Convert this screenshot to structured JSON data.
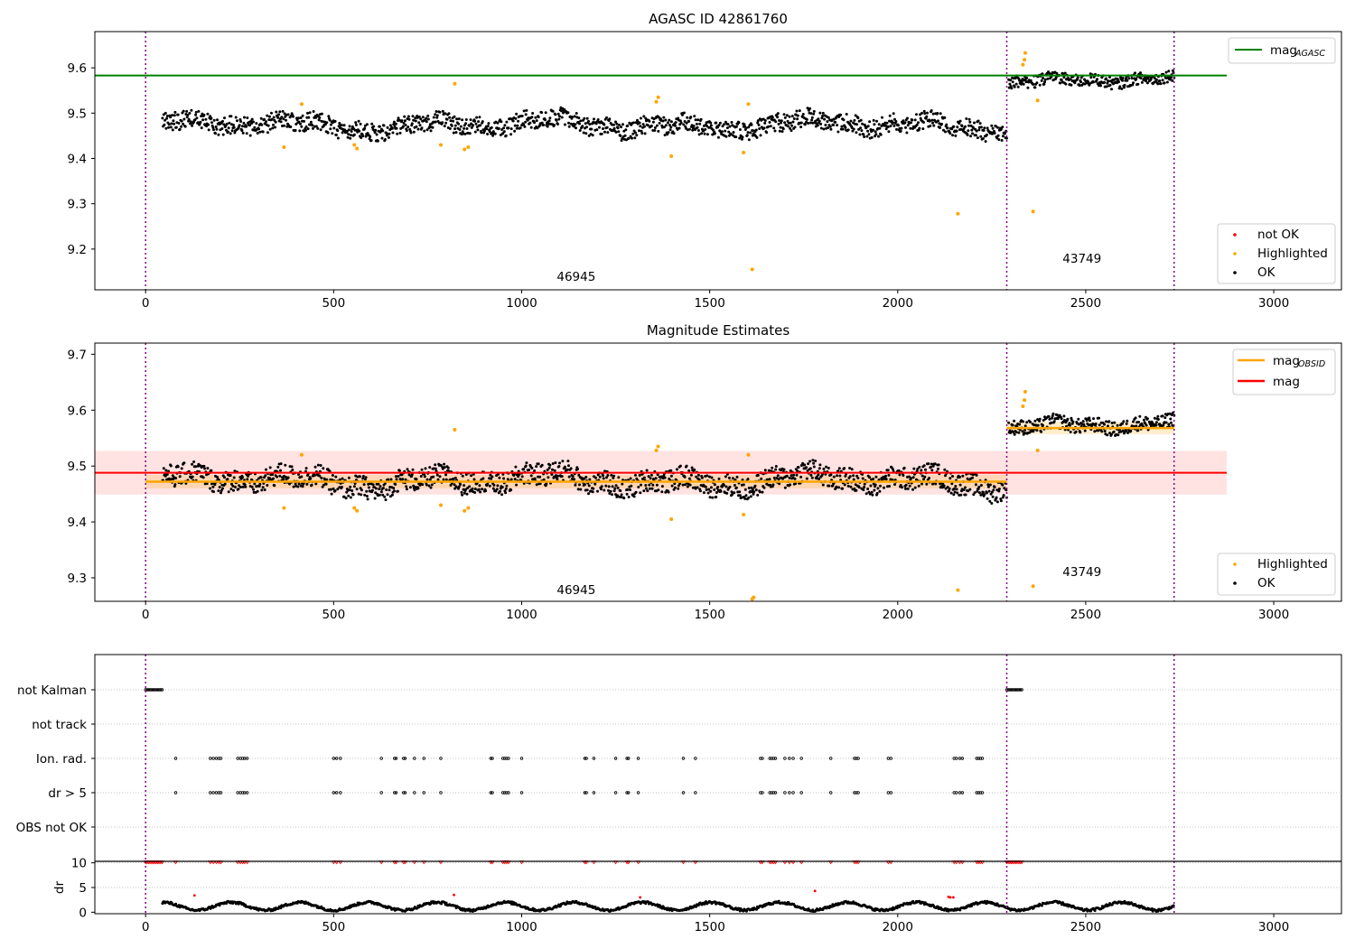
{
  "chart_data": [
    {
      "type": "scatter",
      "title": "AGASC ID 42861760",
      "xlim": [
        -135,
        3180
      ],
      "ylim": [
        9.11,
        9.68
      ],
      "xticks": [
        0,
        500,
        1000,
        1500,
        2000,
        2500,
        3000
      ],
      "yticks": [
        9.2,
        9.3,
        9.4,
        9.5,
        9.6
      ],
      "ytick_labels": [
        "9.2",
        "9.3",
        "9.4",
        "9.5",
        "9.6"
      ],
      "obsid_boundaries": [
        0,
        2290,
        2735
      ],
      "obsid_labels": [
        {
          "text": "46945",
          "x": 1145,
          "y": 9.13
        },
        {
          "text": "43749",
          "x": 2490,
          "y": 9.17
        }
      ],
      "reference_lines": [
        {
          "name": "mag",
          "subscript": "AGASC",
          "y": 9.583,
          "x": [
            -135,
            2875
          ],
          "color": "#008000"
        }
      ],
      "segments": [
        {
          "x": [
            45,
            2290
          ],
          "base": 9.474,
          "amp": 0.018
        },
        {
          "x": [
            2295,
            2735
          ],
          "base": 9.572,
          "amp": 0.012
        }
      ],
      "highlighted_points": [
        [
          368,
          9.425
        ],
        [
          415,
          9.52
        ],
        [
          555,
          9.43
        ],
        [
          562,
          9.422
        ],
        [
          785,
          9.43
        ],
        [
          822,
          9.565
        ],
        [
          848,
          9.42
        ],
        [
          858,
          9.425
        ],
        [
          1358,
          9.525
        ],
        [
          1363,
          9.535
        ],
        [
          1398,
          9.405
        ],
        [
          1590,
          9.413
        ],
        [
          1603,
          9.52
        ],
        [
          1613,
          9.155
        ],
        [
          2160,
          9.278
        ],
        [
          2333,
          9.607
        ],
        [
          2337,
          9.618
        ],
        [
          2339,
          9.633
        ],
        [
          2360,
          9.283
        ],
        [
          2372,
          9.528
        ]
      ],
      "legend": {
        "reference": [
          {
            "label": "mag",
            "subscript": "AGASC",
            "color": "#008000"
          }
        ],
        "points": [
          {
            "label": "not OK",
            "color": "#ff0000"
          },
          {
            "label": "Highlighted",
            "color": "#ffa500"
          },
          {
            "label": "OK",
            "color": "#000000"
          }
        ],
        "placement": [
          "upper right",
          "lower right"
        ]
      }
    },
    {
      "type": "scatter",
      "title": "Magnitude Estimates",
      "xlim": [
        -135,
        3180
      ],
      "ylim": [
        9.258,
        9.72
      ],
      "xticks": [
        0,
        500,
        1000,
        1500,
        2000,
        2500,
        3000
      ],
      "yticks": [
        9.3,
        9.4,
        9.5,
        9.6,
        9.7
      ],
      "ytick_labels": [
        "9.3",
        "9.4",
        "9.5",
        "9.6",
        "9.7"
      ],
      "obsid_boundaries": [
        0,
        2290,
        2735
      ],
      "obsid_labels": [
        {
          "text": "46945",
          "x": 1145,
          "y": 9.271
        },
        {
          "text": "43749",
          "x": 2490,
          "y": 9.303
        }
      ],
      "mag": {
        "y": 9.488,
        "band": [
          9.449,
          9.527
        ],
        "x": [
          -135,
          2875
        ],
        "color": "#ff0000"
      },
      "mag_obsid": [
        {
          "x": [
            0,
            2290
          ],
          "y": 9.472,
          "band": [
            9.46,
            9.484
          ]
        },
        {
          "x": [
            2290,
            2735
          ],
          "y": 9.568,
          "band": [
            9.557,
            9.579
          ]
        }
      ],
      "segments": [
        {
          "x": [
            45,
            2290
          ],
          "base": 9.474,
          "amp": 0.018
        },
        {
          "x": [
            2295,
            2735
          ],
          "base": 9.572,
          "amp": 0.012
        }
      ],
      "highlighted_points": [
        [
          368,
          9.425
        ],
        [
          415,
          9.52
        ],
        [
          555,
          9.425
        ],
        [
          562,
          9.42
        ],
        [
          785,
          9.43
        ],
        [
          822,
          9.565
        ],
        [
          848,
          9.42
        ],
        [
          858,
          9.425
        ],
        [
          1358,
          9.528
        ],
        [
          1363,
          9.535
        ],
        [
          1398,
          9.405
        ],
        [
          1590,
          9.413
        ],
        [
          1603,
          9.52
        ],
        [
          1613,
          9.262
        ],
        [
          1617,
          9.265
        ],
        [
          2160,
          9.278
        ],
        [
          2333,
          9.607
        ],
        [
          2337,
          9.618
        ],
        [
          2339,
          9.633
        ],
        [
          2360,
          9.285
        ],
        [
          2372,
          9.528
        ]
      ],
      "legend": {
        "lines": [
          {
            "label": "mag",
            "subscript": "OBSID",
            "color": "#ffa500"
          },
          {
            "label": "mag",
            "subscript": "",
            "color": "#ff0000"
          }
        ],
        "points": [
          {
            "label": "Highlighted",
            "color": "#ffa500"
          },
          {
            "label": "OK",
            "color": "#000000"
          }
        ],
        "placement": [
          "upper right",
          "lower right"
        ]
      }
    },
    {
      "type": "scatter",
      "title": "",
      "xlim": [
        -135,
        3180
      ],
      "xticks": [
        0,
        500,
        1000,
        1500,
        2000,
        2500,
        3000
      ],
      "obsid_boundaries": [
        0,
        2290,
        2735
      ],
      "flag_categories": [
        "not Kalman",
        "not track",
        "Ion. rad.",
        "dr > 5",
        "OBS not OK"
      ],
      "flag_runs": {
        "not Kalman": [
          [
            0,
            45
          ],
          [
            2290,
            2333
          ]
        ],
        "not track": [],
        "Ion. rad.": [
          80,
          172,
          180,
          188,
          195,
          200,
          245,
          252,
          258,
          263,
          270,
          500,
          508,
          518,
          627,
          662,
          666,
          686,
          690,
          715,
          740,
          785,
          918,
          922,
          950,
          955,
          960,
          965,
          1000,
          1168,
          1172,
          1192,
          1250,
          1280,
          1284,
          1310,
          1430,
          1462,
          1635,
          1640,
          1660,
          1665,
          1670,
          1675,
          1700,
          1712,
          1722,
          1744,
          1822,
          1885,
          1890,
          1895,
          1975,
          1982,
          2150,
          2156,
          2165,
          2172,
          2210,
          2215,
          2220,
          2225
        ],
        "dr > 5": [
          80,
          172,
          180,
          188,
          195,
          200,
          245,
          252,
          258,
          263,
          270,
          500,
          508,
          518,
          627,
          662,
          666,
          686,
          690,
          715,
          740,
          785,
          918,
          922,
          950,
          955,
          960,
          965,
          1000,
          1168,
          1172,
          1192,
          1250,
          1280,
          1284,
          1310,
          1430,
          1462,
          1635,
          1640,
          1660,
          1665,
          1670,
          1675,
          1700,
          1712,
          1722,
          1744,
          1822,
          1885,
          1890,
          1895,
          1975,
          1982,
          2150,
          2156,
          2165,
          2172,
          2210,
          2215,
          2220,
          2225
        ],
        "OBS not OK": []
      }
    },
    {
      "type": "scatter",
      "title": "",
      "ylabel": "dr",
      "xlim": [
        -135,
        3180
      ],
      "ylim": [
        -0.3,
        10.3
      ],
      "xticks": [
        0,
        500,
        1000,
        1500,
        2000,
        2500,
        3000
      ],
      "xtick_labels": [
        "0",
        "500",
        "1000",
        "1500",
        "2000",
        "2500",
        "3000"
      ],
      "yticks": [
        0,
        5,
        10
      ],
      "ytick_labels": [
        "0",
        "5",
        "10"
      ],
      "obsid_boundaries": [
        0,
        2290,
        2735
      ],
      "dr_series": {
        "x": [
          45,
          2735
        ],
        "base": 1.2,
        "amp": 0.8
      },
      "clipped_red_runs": [
        [
          0,
          45
        ],
        [
          2290,
          2333
        ]
      ],
      "red_outliers": [
        [
          130,
          3.4
        ],
        [
          820,
          3.5
        ],
        [
          1315,
          3.0
        ],
        [
          1780,
          4.3
        ],
        [
          2135,
          3.1
        ],
        [
          2140,
          3.0
        ],
        [
          2148,
          3.0
        ]
      ]
    }
  ]
}
